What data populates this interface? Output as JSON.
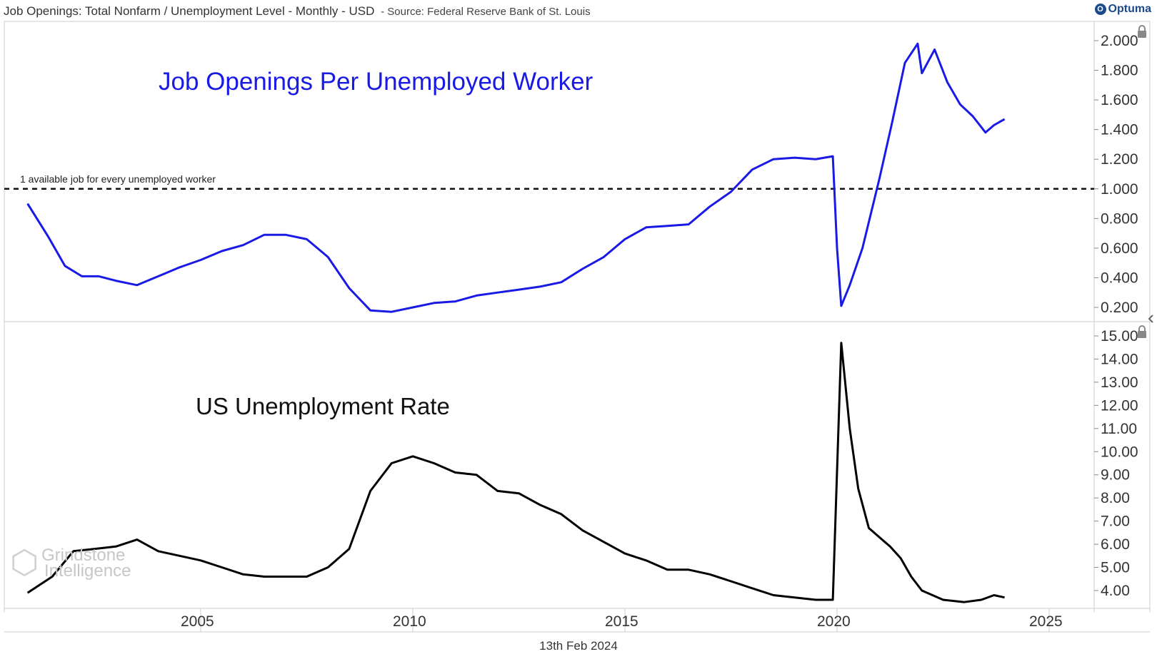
{
  "header": {
    "title": "Job Openings: Total Nonfarm / Unemployment Level - Monthly - USD",
    "source": "- Source: Federal Reserve Bank of St. Louis"
  },
  "logo": {
    "text": "Optuma"
  },
  "footer": {
    "date": "13th Feb 2024"
  },
  "watermark": {
    "line1": "Grindstone",
    "line2": "Intelligence"
  },
  "colors": {
    "openings_line": "#1a1ae6",
    "unemployment_line": "#000000",
    "grid": "#cccccc",
    "text": "#333333"
  },
  "chart_data": [
    {
      "type": "line",
      "title": "Job Openings Per Unemployed Worker",
      "annotation": "1 available job for every unemployed worker",
      "reference_line": 1.0,
      "ylim": [
        0.1,
        2.1
      ],
      "yticks": [
        "2.000",
        "1.800",
        "1.600",
        "1.400",
        "1.200",
        "1.000",
        "0.800",
        "0.600",
        "0.400",
        "0.200"
      ],
      "x": [
        2000.92,
        2001.4,
        2001.8,
        2002.2,
        2002.6,
        2003.0,
        2003.5,
        2004.0,
        2004.5,
        2005.0,
        2005.5,
        2006.0,
        2006.5,
        2007.0,
        2007.5,
        2008.0,
        2008.5,
        2009.0,
        2009.5,
        2010.0,
        2010.5,
        2011.0,
        2011.5,
        2012.0,
        2012.5,
        2013.0,
        2013.5,
        2014.0,
        2014.5,
        2015.0,
        2015.5,
        2016.0,
        2016.5,
        2017.0,
        2017.5,
        2018.0,
        2018.5,
        2019.0,
        2019.5,
        2019.9,
        2020.0,
        2020.1,
        2020.3,
        2020.6,
        2021.0,
        2021.3,
        2021.6,
        2021.9,
        2022.0,
        2022.3,
        2022.6,
        2022.9,
        2023.2,
        2023.5,
        2023.7,
        2023.95
      ],
      "y": [
        0.9,
        0.68,
        0.48,
        0.41,
        0.41,
        0.38,
        0.35,
        0.41,
        0.47,
        0.52,
        0.58,
        0.62,
        0.69,
        0.69,
        0.66,
        0.54,
        0.33,
        0.18,
        0.17,
        0.2,
        0.23,
        0.24,
        0.28,
        0.3,
        0.32,
        0.34,
        0.37,
        0.46,
        0.54,
        0.66,
        0.74,
        0.75,
        0.76,
        0.88,
        0.98,
        1.13,
        1.2,
        1.21,
        1.2,
        1.22,
        0.6,
        0.21,
        0.35,
        0.6,
        1.07,
        1.45,
        1.85,
        1.98,
        1.78,
        1.94,
        1.72,
        1.57,
        1.49,
        1.38,
        1.43,
        1.47
      ]
    },
    {
      "type": "line",
      "title": "US Unemployment Rate",
      "ylim": [
        3.2,
        15.2
      ],
      "yticks": [
        "15.00",
        "14.00",
        "13.00",
        "12.00",
        "11.00",
        "10.00",
        "9.00",
        "8.00",
        "7.00",
        "6.00",
        "5.00",
        "4.00"
      ],
      "x": [
        2000.92,
        2001.5,
        2002.0,
        2002.5,
        2003.0,
        2003.5,
        2004.0,
        2004.5,
        2005.0,
        2005.5,
        2006.0,
        2006.5,
        2007.0,
        2007.5,
        2008.0,
        2008.5,
        2009.0,
        2009.5,
        2010.0,
        2010.5,
        2011.0,
        2011.5,
        2012.0,
        2012.5,
        2013.0,
        2013.5,
        2014.0,
        2014.5,
        2015.0,
        2015.5,
        2016.0,
        2016.5,
        2017.0,
        2017.5,
        2018.0,
        2018.5,
        2019.0,
        2019.5,
        2019.9,
        2020.1,
        2020.3,
        2020.5,
        2020.75,
        2021.0,
        2021.25,
        2021.5,
        2021.75,
        2022.0,
        2022.5,
        2023.0,
        2023.4,
        2023.7,
        2023.95
      ],
      "y": [
        3.9,
        4.6,
        5.7,
        5.8,
        5.9,
        6.2,
        5.7,
        5.5,
        5.3,
        5.0,
        4.7,
        4.6,
        4.6,
        4.6,
        5.0,
        5.8,
        8.3,
        9.5,
        9.8,
        9.5,
        9.1,
        9.0,
        8.3,
        8.2,
        7.7,
        7.3,
        6.6,
        6.1,
        5.6,
        5.3,
        4.9,
        4.9,
        4.7,
        4.4,
        4.1,
        3.8,
        3.7,
        3.6,
        3.6,
        14.7,
        11.0,
        8.4,
        6.7,
        6.3,
        5.9,
        5.4,
        4.6,
        4.0,
        3.6,
        3.5,
        3.6,
        3.8,
        3.7
      ]
    }
  ],
  "x_axis": {
    "ticks": [
      {
        "label": "2005",
        "value": 2005
      },
      {
        "label": "2010",
        "value": 2010
      },
      {
        "label": "2015",
        "value": 2015
      },
      {
        "label": "2020",
        "value": 2020
      },
      {
        "label": "2025",
        "value": 2025
      }
    ]
  }
}
